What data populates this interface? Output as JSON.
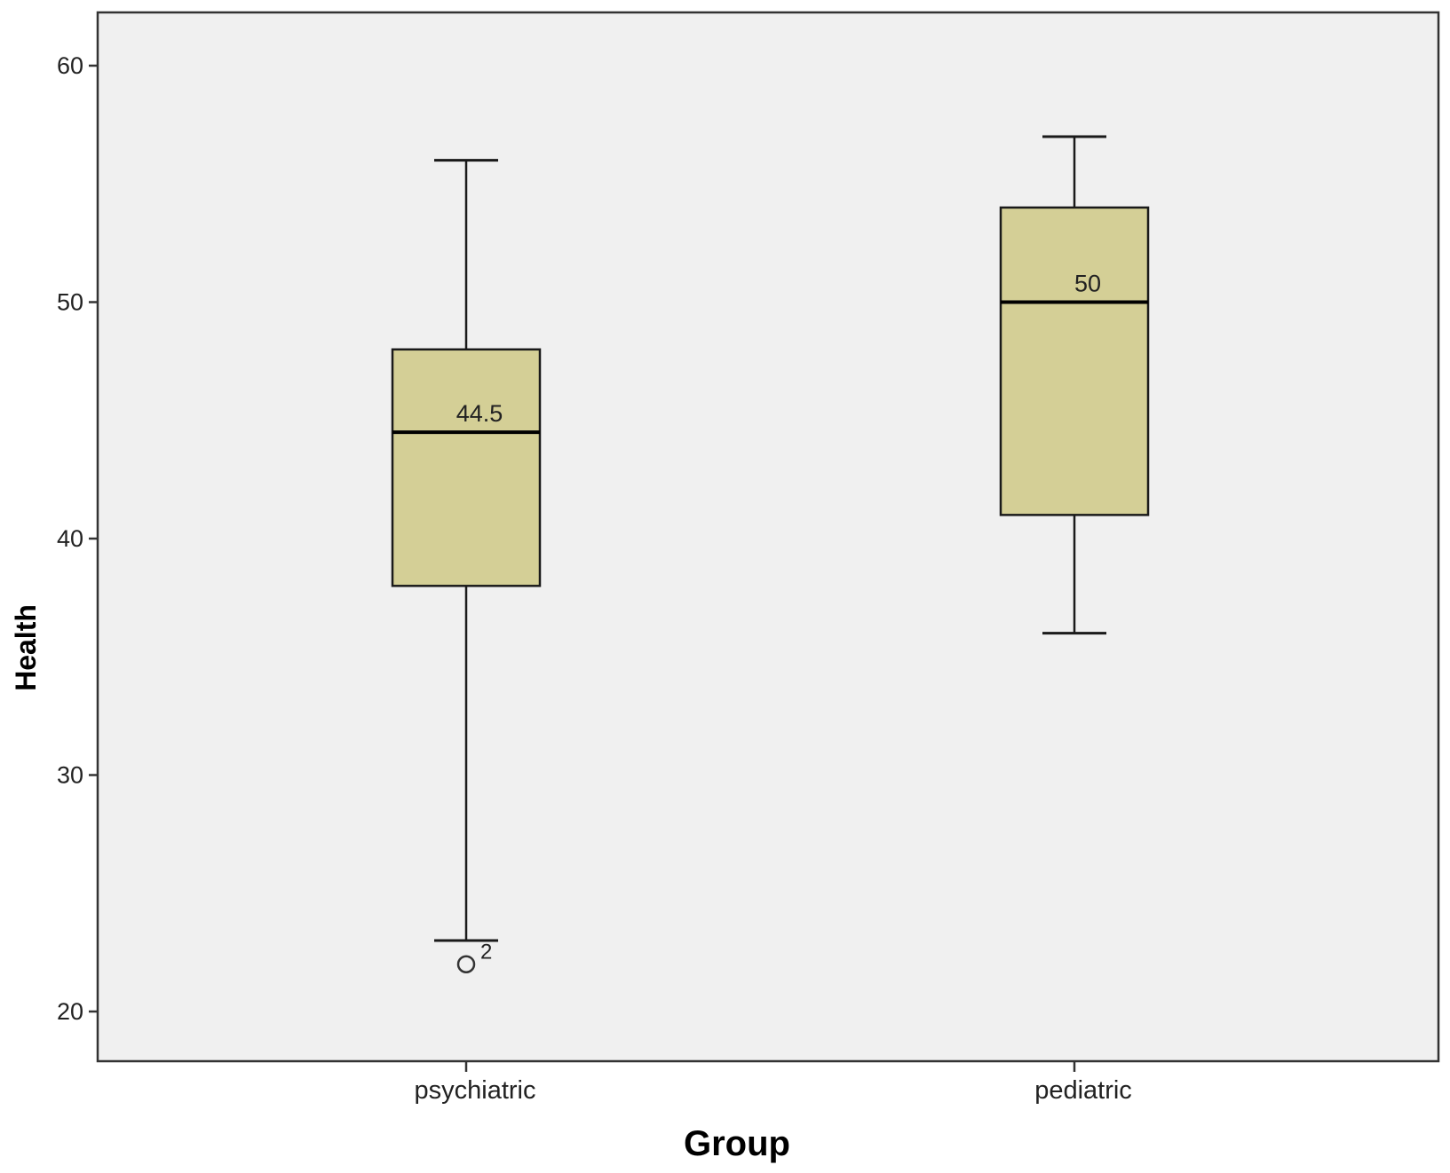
{
  "chart_data": {
    "type": "boxplot",
    "xlabel": "Group",
    "ylabel": "Health",
    "ylim": [
      18,
      62
    ],
    "yticks": [
      20,
      30,
      40,
      50,
      60
    ],
    "grid": false,
    "categories": [
      "psychiatric",
      "pediatric"
    ],
    "boxes": [
      {
        "category": "psychiatric",
        "whisker_low": 23,
        "q1": 38,
        "median": 44.5,
        "q3": 48,
        "whisker_high": 56,
        "median_label": "44.5",
        "outliers": [
          {
            "value": 22,
            "label": "2"
          }
        ]
      },
      {
        "category": "pediatric",
        "whisker_low": 36,
        "q1": 41,
        "median": 50,
        "q3": 54,
        "whisker_high": 57,
        "median_label": "50",
        "outliers": []
      }
    ],
    "colors": {
      "box_fill": "#d4cf96",
      "plot_background": "#f0f0f0",
      "stroke": "#1a1a1a"
    }
  }
}
